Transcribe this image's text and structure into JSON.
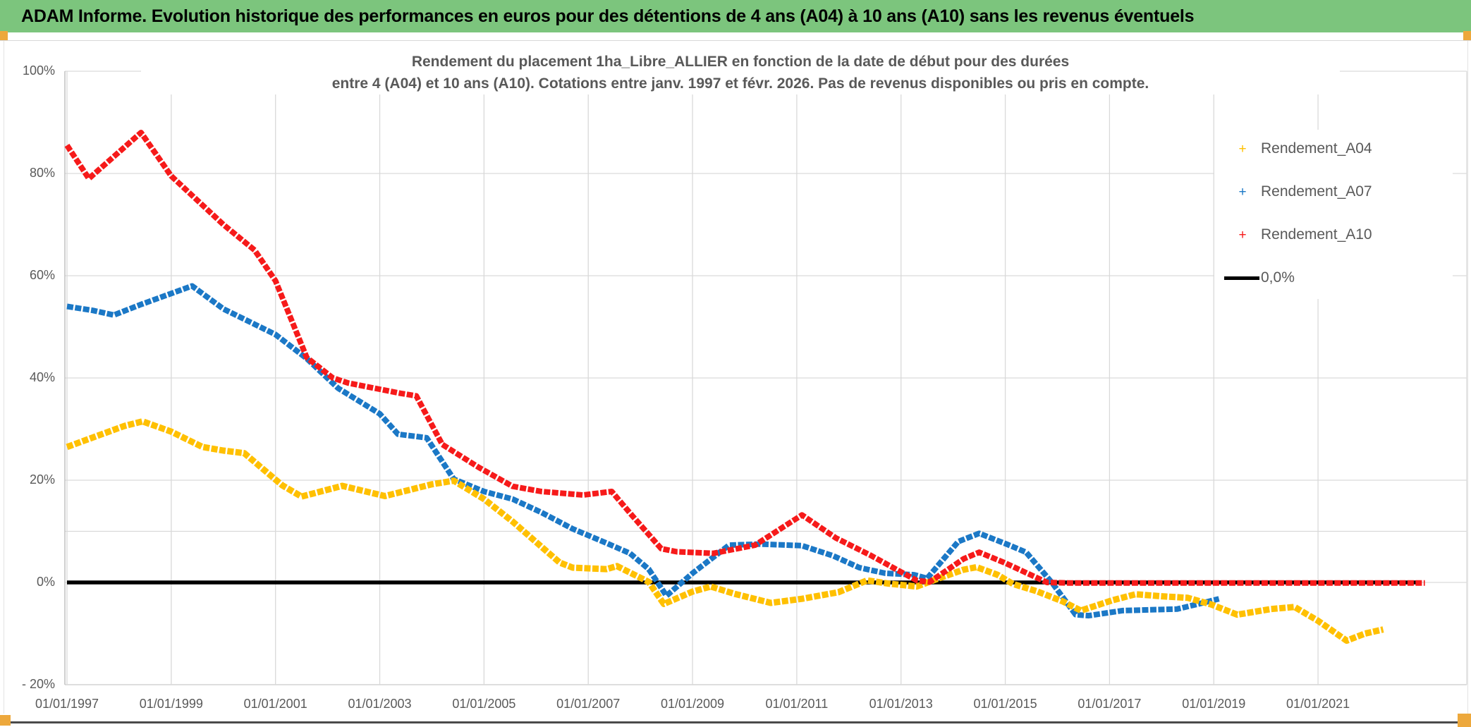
{
  "banner": {
    "title": "ADAM Informe. Evolution historique des performances en euros pour des détentions de 4 ans (A04) à 10 ans (A10) sans les revenus éventuels"
  },
  "colors": {
    "banner_bg": "#7CC57D",
    "banner_text": "#000000",
    "accent_gold": "#EDA83C",
    "text_gray": "#595959",
    "gridline": "#D9D9D9",
    "axis_line": "#BFBFBF",
    "plot_border": "#C9C9C9",
    "bottom_rule": "#4A4A4A",
    "side_edge": "#E3E3E3",
    "series_a04": "#FFC000",
    "series_a07": "#1B78C6",
    "series_a10": "#F61A1A",
    "zero_line": "#000000"
  },
  "chart_data": {
    "type": "line",
    "title_line1": "Rendement du placement 1ha_Libre_ALLIER en fonction de la date de début pour des durées",
    "title_line2": "entre 4 (A04) et 10 ans (A10). Cotations entre janv. 1997 et févr. 2026. Pas de revenus disponibles ou pris en compte.",
    "x_axis": {
      "min_year": 1997,
      "max_year": 2023.9,
      "grid": true,
      "ticks": [
        {
          "label": "01/01/1997",
          "year": 1997
        },
        {
          "label": "01/01/1999",
          "year": 1999
        },
        {
          "label": "01/01/2001",
          "year": 2001
        },
        {
          "label": "01/01/2003",
          "year": 2003
        },
        {
          "label": "01/01/2005",
          "year": 2005
        },
        {
          "label": "01/01/2007",
          "year": 2007
        },
        {
          "label": "01/01/2009",
          "year": 2009
        },
        {
          "label": "01/01/2011",
          "year": 2011
        },
        {
          "label": "01/01/2013",
          "year": 2013
        },
        {
          "label": "01/01/2015",
          "year": 2015
        },
        {
          "label": "01/01/2017",
          "year": 2017
        },
        {
          "label": "01/01/2019",
          "year": 2019
        },
        {
          "label": "01/01/2021",
          "year": 2021
        }
      ]
    },
    "y_axis": {
      "min": -20,
      "max": 100,
      "grid": true,
      "ticks": [
        {
          "label": "100%",
          "value": 100
        },
        {
          "label": "80%",
          "value": 80
        },
        {
          "label": "60%",
          "value": 60
        },
        {
          "label": "40%",
          "value": 40
        },
        {
          "label": "20%",
          "value": 20
        },
        {
          "label": "0%",
          "value": 0
        },
        {
          "label": "- 20%",
          "value": -20
        }
      ],
      "extra_gridline_value": 10
    },
    "legend": [
      {
        "label": "Rendement_A04",
        "color": "#FFC000",
        "marker": "plus"
      },
      {
        "label": "Rendement_A07",
        "color": "#1B78C6",
        "marker": "plus"
      },
      {
        "label": "Rendement_A10",
        "color": "#F61A1A",
        "marker": "plus"
      },
      {
        "label": "0,0%",
        "color": "#000000",
        "marker": "line"
      }
    ],
    "legend_position": "right",
    "series": [
      {
        "name": "0,0%",
        "color": "#000000",
        "stroke_width": 5.5,
        "dashed": false,
        "points": [
          [
            1997.0,
            0
          ],
          [
            2022.9,
            0
          ]
        ]
      },
      {
        "name": "Rendement_A07",
        "color": "#1B78C6",
        "stroke_width": 8,
        "dashed": true,
        "points": [
          [
            1997.0,
            54
          ],
          [
            1997.5,
            53.2
          ],
          [
            1997.9,
            52.3
          ],
          [
            1998.4,
            54.3
          ],
          [
            1999.4,
            58
          ],
          [
            2000.0,
            53.5
          ],
          [
            2001.0,
            48.5
          ],
          [
            2001.6,
            43.8
          ],
          [
            2002.2,
            38
          ],
          [
            2003.0,
            33
          ],
          [
            2003.35,
            29
          ],
          [
            2003.9,
            28.3
          ],
          [
            2004.42,
            20.2
          ],
          [
            2005.0,
            17.8
          ],
          [
            2005.55,
            16.3
          ],
          [
            2006.1,
            13.7
          ],
          [
            2006.7,
            10.5
          ],
          [
            2007.35,
            7.7
          ],
          [
            2007.8,
            5.7
          ],
          [
            2008.16,
            2.6
          ],
          [
            2008.5,
            -2.6
          ],
          [
            2009.0,
            1.8
          ],
          [
            2009.7,
            7.3
          ],
          [
            2010.3,
            7.5
          ],
          [
            2011.1,
            7.2
          ],
          [
            2011.7,
            5.2
          ],
          [
            2012.2,
            2.9
          ],
          [
            2012.7,
            1.8
          ],
          [
            2013.25,
            1.5
          ],
          [
            2013.5,
            0.8
          ],
          [
            2014.1,
            8
          ],
          [
            2014.5,
            9.6
          ],
          [
            2015.05,
            7.4
          ],
          [
            2015.4,
            5.9
          ],
          [
            2015.9,
            -0.1
          ],
          [
            2016.35,
            -6.3
          ],
          [
            2016.6,
            -6.5
          ],
          [
            2017.25,
            -5.5
          ],
          [
            2018.3,
            -5.2
          ],
          [
            2018.75,
            -4.1
          ],
          [
            2019.1,
            -3.2
          ]
        ]
      },
      {
        "name": "Rendement_A04",
        "color": "#FFC000",
        "stroke_width": 9,
        "dashed": true,
        "points": [
          [
            1997.0,
            26.5
          ],
          [
            1997.4,
            28
          ],
          [
            1998.1,
            30.6
          ],
          [
            1998.45,
            31.5
          ],
          [
            1999.0,
            29.5
          ],
          [
            1999.6,
            26.5
          ],
          [
            2000.0,
            25.8
          ],
          [
            2000.4,
            25.3
          ],
          [
            2001.13,
            19
          ],
          [
            2001.5,
            16.8
          ],
          [
            2002.28,
            18.9
          ],
          [
            2003.1,
            16.9
          ],
          [
            2004.0,
            19.2
          ],
          [
            2004.42,
            19.9
          ],
          [
            2005.0,
            16.3
          ],
          [
            2005.55,
            11.9
          ],
          [
            2006.1,
            7
          ],
          [
            2006.45,
            3.9
          ],
          [
            2006.7,
            2.9
          ],
          [
            2007.35,
            2.6
          ],
          [
            2007.55,
            3.2
          ],
          [
            2008.16,
            0.1
          ],
          [
            2008.45,
            -4.2
          ],
          [
            2009.0,
            -1.8
          ],
          [
            2009.35,
            -0.8
          ],
          [
            2009.8,
            -2.2
          ],
          [
            2010.5,
            -4
          ],
          [
            2011.1,
            -3.2
          ],
          [
            2011.8,
            -1.9
          ],
          [
            2012.35,
            0.4
          ],
          [
            2012.75,
            -0.2
          ],
          [
            2013.3,
            -0.8
          ],
          [
            2013.75,
            0.9
          ],
          [
            2014.2,
            2.5
          ],
          [
            2014.45,
            3
          ],
          [
            2014.85,
            1.5
          ],
          [
            2015.15,
            -0.3
          ],
          [
            2015.6,
            -1.7
          ],
          [
            2016.1,
            -3.7
          ],
          [
            2016.45,
            -5.5
          ],
          [
            2016.6,
            -5
          ],
          [
            2017.05,
            -3.5
          ],
          [
            2017.5,
            -2.3
          ],
          [
            2018.0,
            -2.7
          ],
          [
            2018.5,
            -3
          ],
          [
            2018.95,
            -4.3
          ],
          [
            2019.45,
            -6.3
          ],
          [
            2020.1,
            -5.2
          ],
          [
            2020.55,
            -4.8
          ],
          [
            2021.0,
            -7.5
          ],
          [
            2021.55,
            -11.4
          ],
          [
            2021.9,
            -10
          ],
          [
            2022.25,
            -9.2
          ]
        ]
      },
      {
        "name": "Rendement_A10",
        "color": "#F61A1A",
        "stroke_width": 8,
        "dashed": true,
        "points": [
          [
            1997.0,
            85.5
          ],
          [
            1997.42,
            79
          ],
          [
            1998.42,
            88
          ],
          [
            1999.0,
            79.5
          ],
          [
            2000.0,
            70
          ],
          [
            2000.6,
            65
          ],
          [
            2001.0,
            59
          ],
          [
            2001.6,
            44
          ],
          [
            2002.1,
            40
          ],
          [
            2002.4,
            39
          ],
          [
            2003.4,
            37
          ],
          [
            2003.7,
            36.5
          ],
          [
            2004.2,
            27
          ],
          [
            2004.9,
            22.5
          ],
          [
            2005.55,
            18.8
          ],
          [
            2006.1,
            17.8
          ],
          [
            2006.9,
            17.1
          ],
          [
            2007.45,
            17.8
          ],
          [
            2007.85,
            13
          ],
          [
            2008.4,
            6.6
          ],
          [
            2008.7,
            6
          ],
          [
            2009.4,
            5.7
          ],
          [
            2010.2,
            7.3
          ],
          [
            2011.1,
            13.2
          ],
          [
            2011.75,
            8.7
          ],
          [
            2012.4,
            5.4
          ],
          [
            2012.9,
            2.6
          ],
          [
            2013.3,
            0.4
          ],
          [
            2013.55,
            0.1
          ],
          [
            2014.2,
            4.6
          ],
          [
            2014.5,
            5.9
          ],
          [
            2015.0,
            3.8
          ],
          [
            2015.8,
            0
          ],
          [
            2016.2,
            -0.1
          ],
          [
            2023.05,
            -0.1
          ]
        ]
      }
    ]
  }
}
